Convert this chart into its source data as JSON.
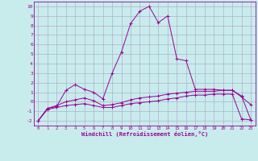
{
  "xlabel": "Windchill (Refroidissement éolien,°C)",
  "background_color": "#c8ecec",
  "line_color": "#990099",
  "grid_color": "#b0b0cc",
  "xlim": [
    -0.5,
    23.5
  ],
  "ylim": [
    -2.5,
    10.5
  ],
  "yticks": [
    -2,
    -1,
    0,
    1,
    2,
    3,
    4,
    5,
    6,
    7,
    8,
    9,
    10
  ],
  "xticks": [
    0,
    1,
    2,
    3,
    4,
    5,
    6,
    7,
    8,
    9,
    10,
    11,
    12,
    13,
    14,
    15,
    16,
    17,
    18,
    19,
    20,
    21,
    22,
    23
  ],
  "series1_x": [
    0,
    1,
    2,
    3,
    4,
    5,
    6,
    7,
    8,
    9,
    10,
    11,
    12,
    13,
    14,
    15,
    16,
    17,
    18,
    19,
    20,
    21,
    22,
    23
  ],
  "series1_y": [
    -2.0,
    -0.7,
    -0.5,
    1.2,
    1.8,
    1.3,
    1.0,
    0.3,
    3.0,
    5.2,
    8.2,
    9.5,
    10.0,
    8.3,
    9.0,
    4.5,
    4.3,
    1.3,
    1.3,
    1.3,
    1.2,
    1.2,
    0.5,
    -0.3
  ],
  "series2_x": [
    0,
    1,
    2,
    3,
    4,
    5,
    6,
    7,
    8,
    9,
    10,
    11,
    12,
    13,
    14,
    15,
    16,
    17,
    18,
    19,
    20,
    21,
    22,
    23
  ],
  "series2_y": [
    -2.0,
    -0.7,
    -0.4,
    0.0,
    0.2,
    0.4,
    0.1,
    -0.4,
    -0.3,
    -0.1,
    0.2,
    0.4,
    0.5,
    0.6,
    0.8,
    0.9,
    1.0,
    1.1,
    1.1,
    1.1,
    1.2,
    1.2,
    0.6,
    -1.9
  ],
  "series3_x": [
    0,
    1,
    2,
    3,
    4,
    5,
    6,
    7,
    8,
    9,
    10,
    11,
    12,
    13,
    14,
    15,
    16,
    17,
    18,
    19,
    20,
    21,
    22,
    23
  ],
  "series3_y": [
    -2.0,
    -0.8,
    -0.6,
    -0.4,
    -0.3,
    -0.2,
    -0.4,
    -0.6,
    -0.6,
    -0.4,
    -0.2,
    -0.1,
    0.0,
    0.1,
    0.3,
    0.4,
    0.6,
    0.7,
    0.7,
    0.8,
    0.8,
    0.8,
    -1.8,
    -1.9
  ]
}
